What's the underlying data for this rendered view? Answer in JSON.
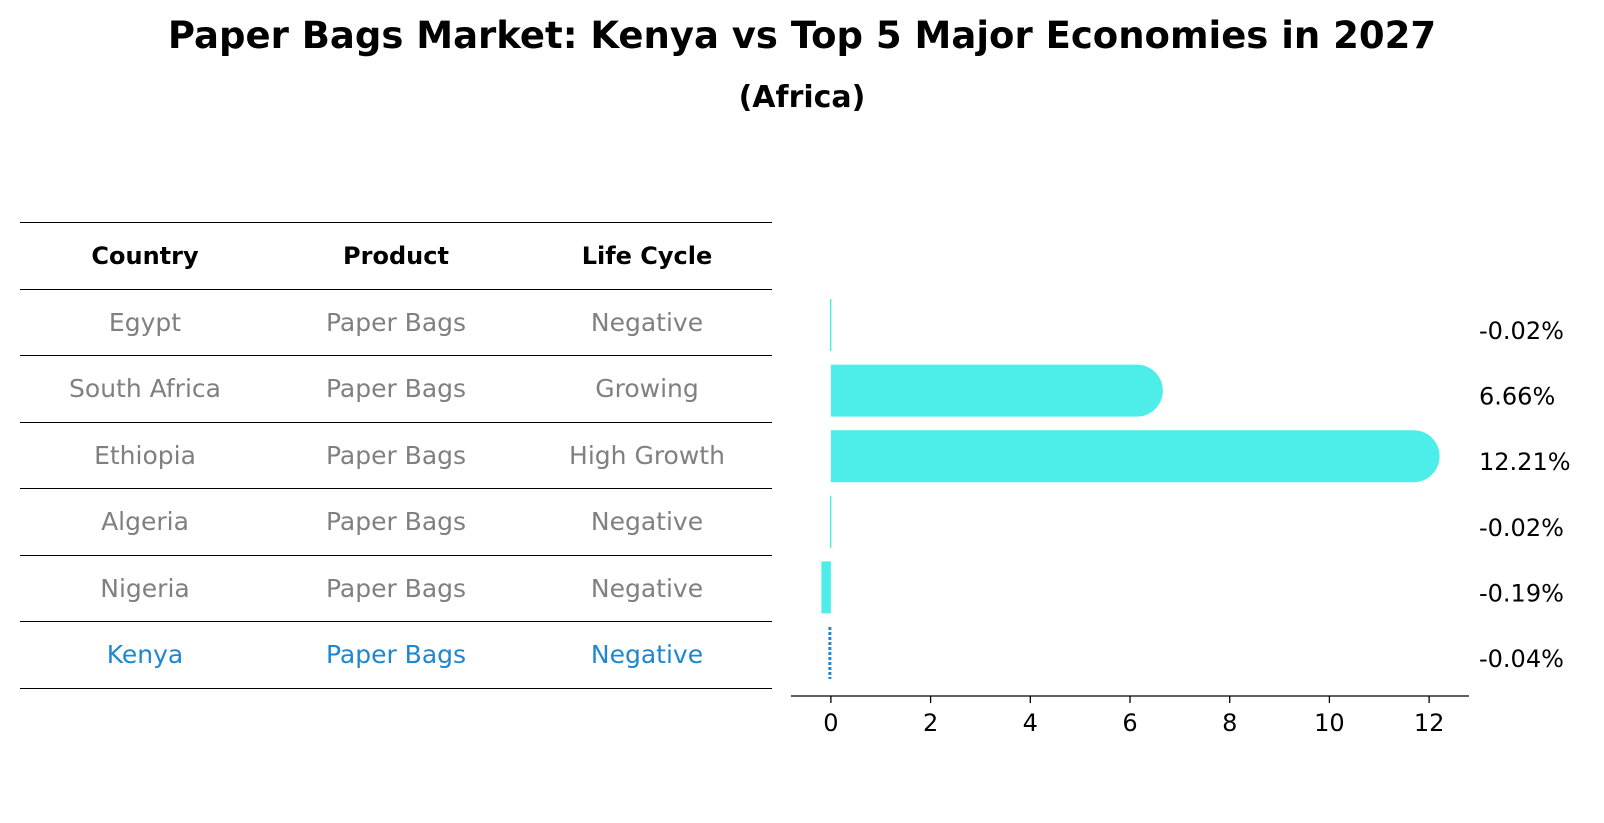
{
  "title": "Paper Bags Market: Kenya vs Top 5 Major Economies in 2027",
  "subtitle": "(Africa)",
  "table": {
    "headers": [
      "Country",
      "Product",
      "Life Cycle"
    ],
    "rows": [
      {
        "country": "Egypt",
        "product": "Paper Bags",
        "life_cycle": "Negative"
      },
      {
        "country": "South Africa",
        "product": "Paper Bags",
        "life_cycle": "Growing"
      },
      {
        "country": "Ethiopia",
        "product": "Paper Bags",
        "life_cycle": "High Growth"
      },
      {
        "country": "Algeria",
        "product": "Paper Bags",
        "life_cycle": "Negative"
      },
      {
        "country": "Nigeria",
        "product": "Paper Bags",
        "life_cycle": "Negative"
      },
      {
        "country": "Kenya",
        "product": "Paper Bags",
        "life_cycle": "Negative"
      }
    ]
  },
  "colors": {
    "bar": "#4deeea",
    "highlight": "#1f86d0",
    "muted": "#808080"
  },
  "chart_data": {
    "type": "bar",
    "orientation": "horizontal",
    "categories": [
      "Egypt",
      "South Africa",
      "Ethiopia",
      "Algeria",
      "Nigeria",
      "Kenya"
    ],
    "values": [
      -0.02,
      6.66,
      12.21,
      -0.02,
      -0.19,
      -0.04
    ],
    "labels": [
      "-0.02%",
      "6.66%",
      "12.21%",
      "-0.02%",
      "-0.19%",
      "-0.04%"
    ],
    "highlight": "Kenya",
    "xlim": [
      -0.8,
      12.8
    ],
    "xticks": [
      0,
      2,
      4,
      6,
      8,
      10,
      12
    ],
    "xlabel": "",
    "ylabel": "",
    "grid": false
  }
}
